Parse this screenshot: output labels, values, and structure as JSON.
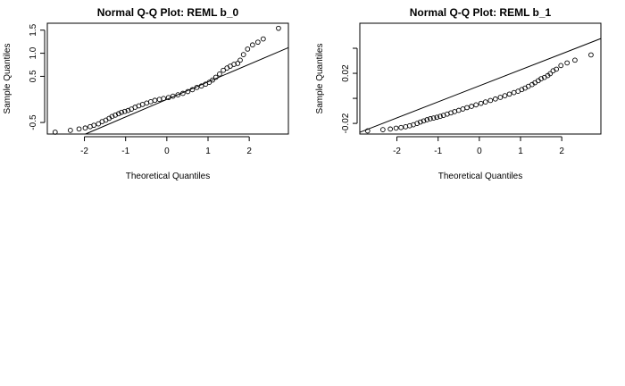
{
  "chart_data": [
    {
      "type": "scatter",
      "title": "Normal Q-Q Plot: REML b_0",
      "xlabel": "Theoretical Quantiles",
      "ylabel": "Sample Quantiles",
      "xlim": [
        -2.9,
        2.95
      ],
      "ylim": [
        -0.75,
        1.65
      ],
      "xticks": [
        -2,
        -1,
        0,
        1,
        2
      ],
      "yticks": [
        -0.5,
        0.5,
        1.0,
        1.5
      ],
      "ytick_labels": [
        "-0.5",
        "0.5",
        "1.0",
        "1.5"
      ],
      "grid": false,
      "reference_line": {
        "intercept": 0.0,
        "slope": 0.38
      },
      "series": [
        {
          "marker": "open-circle",
          "x": [
            -2.71,
            -2.34,
            -2.13,
            -1.98,
            -1.86,
            -1.77,
            -1.66,
            -1.57,
            -1.48,
            -1.4,
            -1.33,
            -1.25,
            -1.17,
            -1.1,
            -1.02,
            -0.94,
            -0.86,
            -0.77,
            -0.68,
            -0.59,
            -0.49,
            -0.39,
            -0.29,
            -0.18,
            -0.08,
            0.04,
            0.15,
            0.27,
            0.39,
            0.51,
            0.62,
            0.73,
            0.84,
            0.94,
            1.03,
            1.11,
            1.19,
            1.28,
            1.37,
            1.46,
            1.54,
            1.63,
            1.72,
            1.78,
            1.86,
            1.96,
            2.08,
            2.21,
            2.34,
            2.71
          ],
          "y": [
            -0.71,
            -0.67,
            -0.64,
            -0.62,
            -0.59,
            -0.56,
            -0.53,
            -0.48,
            -0.45,
            -0.41,
            -0.37,
            -0.34,
            -0.31,
            -0.28,
            -0.26,
            -0.24,
            -0.21,
            -0.17,
            -0.14,
            -0.11,
            -0.08,
            -0.05,
            -0.02,
            0.0,
            0.02,
            0.04,
            0.07,
            0.1,
            0.13,
            0.17,
            0.21,
            0.26,
            0.29,
            0.33,
            0.37,
            0.42,
            0.48,
            0.55,
            0.63,
            0.68,
            0.72,
            0.76,
            0.78,
            0.85,
            0.97,
            1.09,
            1.18,
            1.24,
            1.31,
            1.54
          ]
        }
      ]
    },
    {
      "type": "scatter",
      "title": "Normal Q-Q Plot: REML b_1",
      "xlabel": "Theoretical Quantiles",
      "ylabel": "Sample Quantiles",
      "xlim": [
        -2.9,
        2.95
      ],
      "ylim": [
        -0.0285,
        0.06
      ],
      "xticks": [
        -2,
        -1,
        0,
        1,
        2
      ],
      "yticks": [
        -0.02,
        0.0,
        0.02,
        0.04
      ],
      "ytick_labels": [
        "-0.02",
        "",
        "0.02",
        ""
      ],
      "grid": false,
      "reference_line": {
        "intercept": 0.01,
        "slope": 0.0128
      },
      "series": [
        {
          "marker": "open-circle",
          "x": [
            -2.71,
            -2.34,
            -2.16,
            -2.02,
            -1.9,
            -1.79,
            -1.69,
            -1.6,
            -1.51,
            -1.43,
            -1.35,
            -1.27,
            -1.19,
            -1.11,
            -1.03,
            -0.95,
            -0.87,
            -0.78,
            -0.69,
            -0.6,
            -0.5,
            -0.4,
            -0.3,
            -0.19,
            -0.08,
            0.04,
            0.15,
            0.27,
            0.39,
            0.51,
            0.62,
            0.73,
            0.84,
            0.94,
            1.03,
            1.11,
            1.19,
            1.28,
            1.35,
            1.43,
            1.5,
            1.58,
            1.66,
            1.72,
            1.79,
            1.87,
            1.98,
            2.13,
            2.32,
            2.71
          ],
          "y": [
            -0.026,
            -0.025,
            -0.0245,
            -0.0238,
            -0.0233,
            -0.0227,
            -0.0219,
            -0.0211,
            -0.02,
            -0.0189,
            -0.018,
            -0.0171,
            -0.0163,
            -0.0157,
            -0.0151,
            -0.0144,
            -0.0136,
            -0.0126,
            -0.0116,
            -0.0106,
            -0.0096,
            -0.0085,
            -0.0074,
            -0.0064,
            -0.0052,
            -0.004,
            -0.0029,
            -0.0017,
            -0.0005,
            0.0008,
            0.0021,
            0.0034,
            0.0046,
            0.0057,
            0.007,
            0.0082,
            0.0096,
            0.011,
            0.0125,
            0.0141,
            0.0157,
            0.0167,
            0.0182,
            0.0197,
            0.022,
            0.0233,
            0.0262,
            0.0283,
            0.0305,
            0.0347
          ]
        }
      ]
    }
  ]
}
